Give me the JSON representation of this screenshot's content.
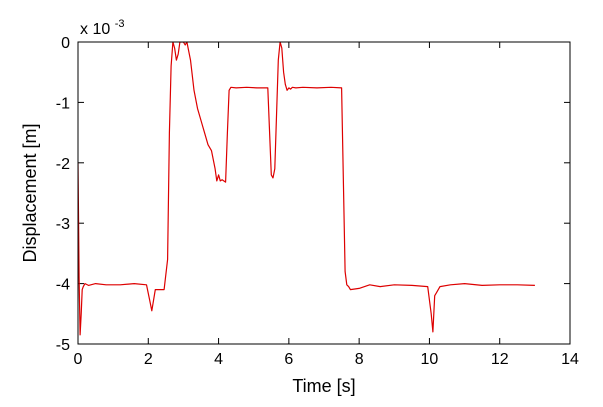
{
  "chart_data": {
    "type": "line",
    "title": "",
    "xlabel": "Time [s]",
    "ylabel": "Displacement [m]",
    "y_scale_label": "x 10",
    "y_scale_exponent": "-3",
    "xlim": [
      0,
      14
    ],
    "ylim": [
      -5,
      0
    ],
    "x_ticks": [
      0,
      2,
      4,
      6,
      8,
      10,
      12,
      14
    ],
    "x_tick_labels": [
      "0",
      "2",
      "4",
      "6",
      "8",
      "10",
      "12",
      "14"
    ],
    "y_ticks": [
      0,
      -1,
      -2,
      -3,
      -4,
      -5
    ],
    "y_tick_labels": [
      "0",
      "-1",
      "-2",
      "-3",
      "-4",
      "-5"
    ],
    "grid": false,
    "legend": "none",
    "series": [
      {
        "color": "#dd0000",
        "x": [
          0,
          0.03,
          0.06,
          0.09,
          0.12,
          0.15,
          0.2,
          0.3,
          0.5,
          0.8,
          1.2,
          1.6,
          1.95,
          2.05,
          2.1,
          2.2,
          2.3,
          2.45,
          2.55,
          2.6,
          2.65,
          2.7,
          2.75,
          2.8,
          2.85,
          2.9,
          3.0,
          3.05,
          3.1,
          3.2,
          3.3,
          3.4,
          3.5,
          3.6,
          3.7,
          3.8,
          3.9,
          3.95,
          4.0,
          4.05,
          4.1,
          4.2,
          4.25,
          4.3,
          4.35,
          4.5,
          4.8,
          5.1,
          5.4,
          5.5,
          5.55,
          5.6,
          5.7,
          5.75,
          5.8,
          5.85,
          5.9,
          5.95,
          6.0,
          6.05,
          6.1,
          6.2,
          6.4,
          6.8,
          7.2,
          7.5,
          7.6,
          7.65,
          7.7,
          7.75,
          8.0,
          8.3,
          8.6,
          9.0,
          9.5,
          9.95,
          10.05,
          10.1,
          10.15,
          10.2,
          10.3,
          10.6,
          11.0,
          11.5,
          12.0,
          12.5,
          13.0
        ],
        "y": [
          -2.0,
          -3.9,
          -4.85,
          -4.5,
          -4.1,
          -4.05,
          -4.0,
          -4.03,
          -4.0,
          -4.02,
          -4.02,
          -4.0,
          -4.02,
          -4.3,
          -4.45,
          -4.1,
          -4.1,
          -4.1,
          -3.6,
          -1.5,
          -0.4,
          0,
          -0.1,
          -0.3,
          -0.2,
          0,
          0,
          -0.05,
          0,
          -0.3,
          -0.8,
          -1.1,
          -1.3,
          -1.5,
          -1.7,
          -1.8,
          -2.1,
          -2.3,
          -2.2,
          -2.3,
          -2.28,
          -2.32,
          -1.5,
          -0.8,
          -0.75,
          -0.76,
          -0.75,
          -0.76,
          -0.76,
          -2.2,
          -2.25,
          -2.1,
          -0.3,
          0,
          -0.1,
          -0.5,
          -0.7,
          -0.8,
          -0.76,
          -0.78,
          -0.75,
          -0.76,
          -0.75,
          -0.76,
          -0.75,
          -0.76,
          -3.8,
          -4.02,
          -4.05,
          -4.1,
          -4.08,
          -4.02,
          -4.05,
          -4.02,
          -4.03,
          -4.05,
          -4.5,
          -4.8,
          -4.2,
          -4.15,
          -4.05,
          -4.02,
          -4.0,
          -4.03,
          -4.02,
          -4.02,
          -4.03
        ]
      }
    ]
  }
}
